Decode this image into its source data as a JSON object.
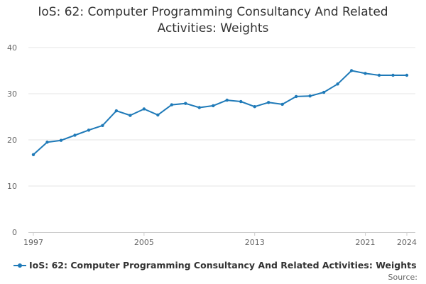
{
  "title_line1": "IoS: 62: Computer Programming Consultancy And Related",
  "title_line2": "Activities: Weights",
  "source_label": "Source:",
  "colors": {
    "series": "#1f7ab8",
    "grid": "#e6e6e6",
    "axis": "#cccccc"
  },
  "chart_data": {
    "type": "line",
    "title": "IoS: 62: Computer Programming Consultancy And Related Activities: Weights",
    "xlabel": "",
    "ylabel": "",
    "xlim": [
      1997,
      2024
    ],
    "ylim": [
      0,
      40
    ],
    "y_ticks": [
      0,
      10,
      20,
      30,
      40
    ],
    "x_tick_labels": [
      "1997",
      "2005",
      "2013",
      "2021",
      "2024"
    ],
    "grid": true,
    "legend_position": "bottom",
    "series": [
      {
        "name": "IoS: 62: Computer Programming Consultancy And Related Activities: Weights",
        "x": [
          1997,
          1998,
          1999,
          2000,
          2001,
          2002,
          2003,
          2004,
          2005,
          2006,
          2007,
          2008,
          2009,
          2010,
          2011,
          2012,
          2013,
          2014,
          2015,
          2016,
          2017,
          2018,
          2019,
          2020,
          2021,
          2022,
          2023,
          2024
        ],
        "values": [
          16.8,
          19.5,
          19.9,
          21.0,
          22.1,
          23.1,
          26.3,
          25.3,
          26.7,
          25.4,
          27.6,
          27.9,
          27.0,
          27.4,
          28.6,
          28.3,
          27.2,
          28.1,
          27.7,
          29.4,
          29.5,
          30.3,
          32.1,
          35.0,
          34.4,
          34.0,
          34.0,
          34.0
        ]
      }
    ]
  }
}
